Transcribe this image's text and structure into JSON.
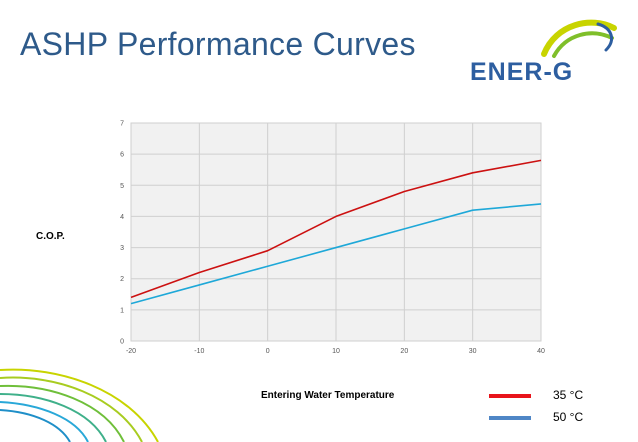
{
  "slide": {
    "title": "ASHP Performance Curves"
  },
  "logo": {
    "text": "ENER-G",
    "icon": "swoosh-logo-icon",
    "colors": [
      "#c8d400",
      "#7fbf2a",
      "#2d5ea0"
    ]
  },
  "decoration": {
    "icon": "swirl-lines-icon",
    "colors": [
      "#c8d400",
      "#6fbf3a",
      "#29a8d8"
    ]
  },
  "chart_data": {
    "type": "line",
    "title": "",
    "xlabel": "Entering Water Temperature",
    "ylabel": "C.O.P.",
    "x": [
      -20,
      -10,
      0,
      10,
      20,
      30,
      40
    ],
    "x_ticks": [
      "-20",
      "-10",
      "0",
      "10",
      "20",
      "30",
      "40"
    ],
    "y_ticks": [
      "0",
      "1",
      "2",
      "3",
      "4",
      "5",
      "6",
      "7"
    ],
    "xlim": [
      -20,
      40
    ],
    "ylim": [
      0,
      7
    ],
    "grid": true,
    "legend_placement": "bottom-right",
    "series": [
      {
        "name": "35 °C",
        "color": "#cc1111",
        "values": [
          1.4,
          2.2,
          2.9,
          4.0,
          4.8,
          5.4,
          5.8
        ]
      },
      {
        "name": "50 °C",
        "color": "#1ea8d8",
        "values": [
          1.2,
          1.8,
          2.4,
          3.0,
          3.6,
          4.2,
          4.4
        ]
      }
    ],
    "legend_swatch_colors": [
      "#e8141b",
      "#4f86c6"
    ]
  }
}
